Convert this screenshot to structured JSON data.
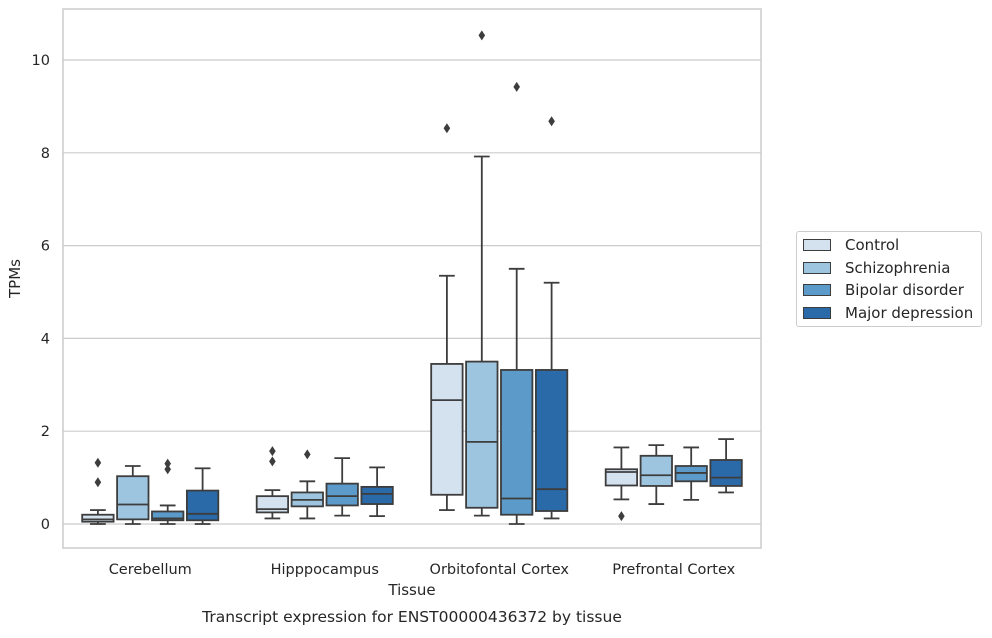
{
  "chart_data": {
    "type": "box",
    "title": "Transcript expression for ENST00000436372 by tissue",
    "xlabel": "Tissue",
    "ylabel": "TPMs",
    "ylim": [
      -0.5,
      11.1
    ],
    "yticks": [
      0,
      2,
      4,
      6,
      8,
      10
    ],
    "grid": "horizontal",
    "legend_position": "right",
    "categories": [
      "Cerebellum",
      "Hipppocampus",
      "Orbitofontal Cortex",
      "Prefrontal Cortex"
    ],
    "series": [
      {
        "name": "Control",
        "color": "#d4e2f0",
        "boxes": [
          {
            "whislo": 0.0,
            "q1": 0.05,
            "med": 0.1,
            "q3": 0.2,
            "whishi": 0.3,
            "fliers": [
              0.9,
              1.32
            ]
          },
          {
            "whislo": 0.12,
            "q1": 0.25,
            "med": 0.32,
            "q3": 0.6,
            "whishi": 0.73,
            "fliers": [
              1.35,
              1.57
            ]
          },
          {
            "whislo": 0.3,
            "q1": 0.63,
            "med": 2.67,
            "q3": 3.45,
            "whishi": 5.35,
            "fliers": [
              8.53
            ]
          },
          {
            "whislo": 0.53,
            "q1": 0.83,
            "med": 1.12,
            "q3": 1.18,
            "whishi": 1.65,
            "fliers": [
              0.17
            ]
          }
        ]
      },
      {
        "name": "Schizophrenia",
        "color": "#9dc5df",
        "boxes": [
          {
            "whislo": 0.0,
            "q1": 0.1,
            "med": 0.42,
            "q3": 1.03,
            "whishi": 1.25,
            "fliers": []
          },
          {
            "whislo": 0.12,
            "q1": 0.38,
            "med": 0.52,
            "q3": 0.68,
            "whishi": 0.92,
            "fliers": [
              1.5
            ]
          },
          {
            "whislo": 0.18,
            "q1": 0.35,
            "med": 1.77,
            "q3": 3.5,
            "whishi": 7.92,
            "fliers": [
              10.53
            ]
          },
          {
            "whislo": 0.43,
            "q1": 0.82,
            "med": 1.05,
            "q3": 1.47,
            "whishi": 1.7,
            "fliers": []
          }
        ]
      },
      {
        "name": "Bipolar disorder",
        "color": "#5b9ac9",
        "boxes": [
          {
            "whislo": 0.0,
            "q1": 0.08,
            "med": 0.12,
            "q3": 0.27,
            "whishi": 0.4,
            "fliers": [
              1.18,
              1.3
            ]
          },
          {
            "whislo": 0.18,
            "q1": 0.4,
            "med": 0.6,
            "q3": 0.87,
            "whishi": 1.42,
            "fliers": []
          },
          {
            "whislo": 0.0,
            "q1": 0.2,
            "med": 0.55,
            "q3": 3.32,
            "whishi": 5.5,
            "fliers": [
              9.42
            ]
          },
          {
            "whislo": 0.52,
            "q1": 0.92,
            "med": 1.1,
            "q3": 1.25,
            "whishi": 1.65,
            "fliers": []
          }
        ]
      },
      {
        "name": "Major depression",
        "color": "#2b6aa8",
        "boxes": [
          {
            "whislo": 0.0,
            "q1": 0.08,
            "med": 0.22,
            "q3": 0.72,
            "whishi": 1.2,
            "fliers": []
          },
          {
            "whislo": 0.17,
            "q1": 0.43,
            "med": 0.65,
            "q3": 0.8,
            "whishi": 1.22,
            "fliers": []
          },
          {
            "whislo": 0.12,
            "q1": 0.28,
            "med": 0.75,
            "q3": 3.32,
            "whishi": 5.2,
            "fliers": [
              8.68
            ]
          },
          {
            "whislo": 0.68,
            "q1": 0.82,
            "med": 1.0,
            "q3": 1.38,
            "whishi": 1.83,
            "fliers": []
          }
        ]
      }
    ]
  }
}
